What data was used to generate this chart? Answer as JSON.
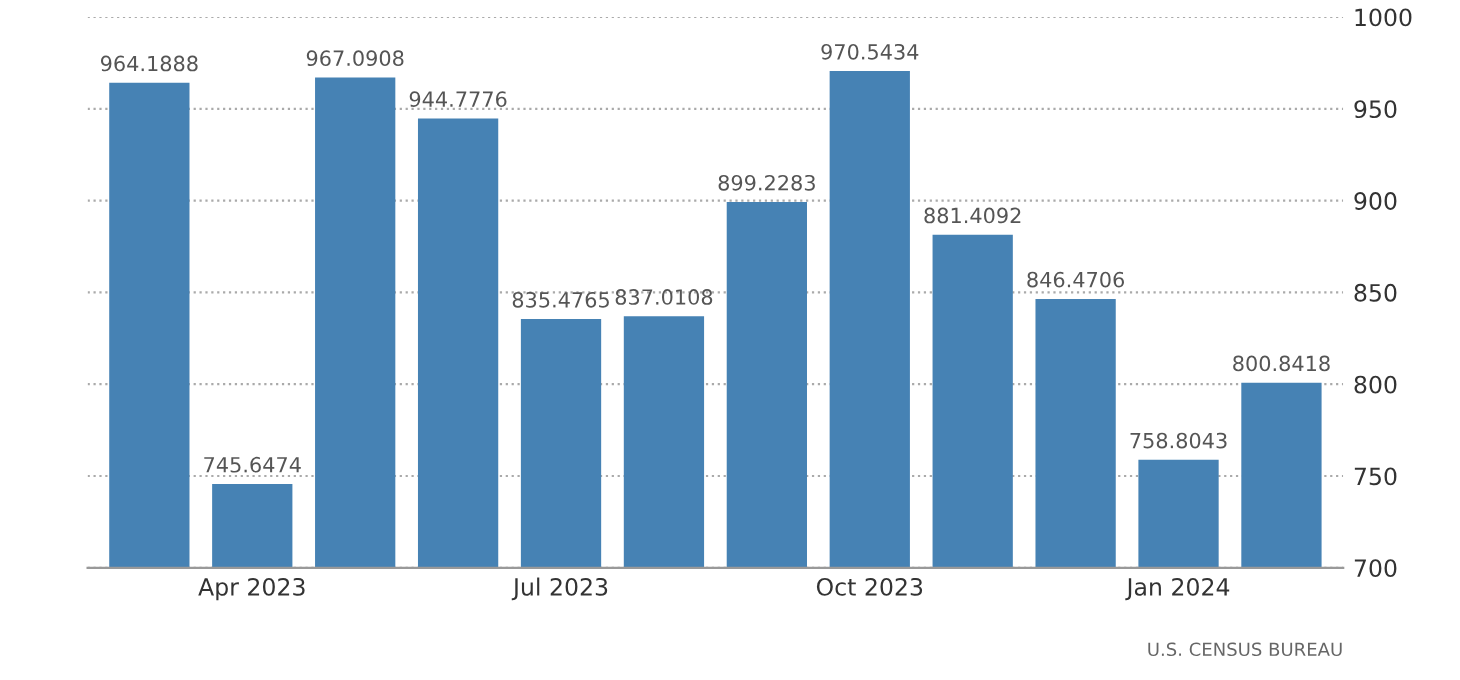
{
  "chart_data": {
    "type": "bar",
    "categories": [
      null,
      "Apr 2023",
      null,
      null,
      "Jul 2023",
      null,
      null,
      "Oct 2023",
      null,
      null,
      "Jan 2024",
      null
    ],
    "values": [
      964.1888,
      745.6474,
      967.0908,
      944.7776,
      835.4765,
      837.0108,
      899.2283,
      970.5434,
      881.4092,
      846.4706,
      758.8043,
      800.8418
    ],
    "color": "#4682b4",
    "ylim": [
      700,
      1000
    ],
    "yticks": [
      700,
      750,
      800,
      850,
      900,
      950,
      1000
    ],
    "grid": "y",
    "data_labels": true,
    "annotations": [
      "U.S. CENSUS BUREAU"
    ]
  }
}
